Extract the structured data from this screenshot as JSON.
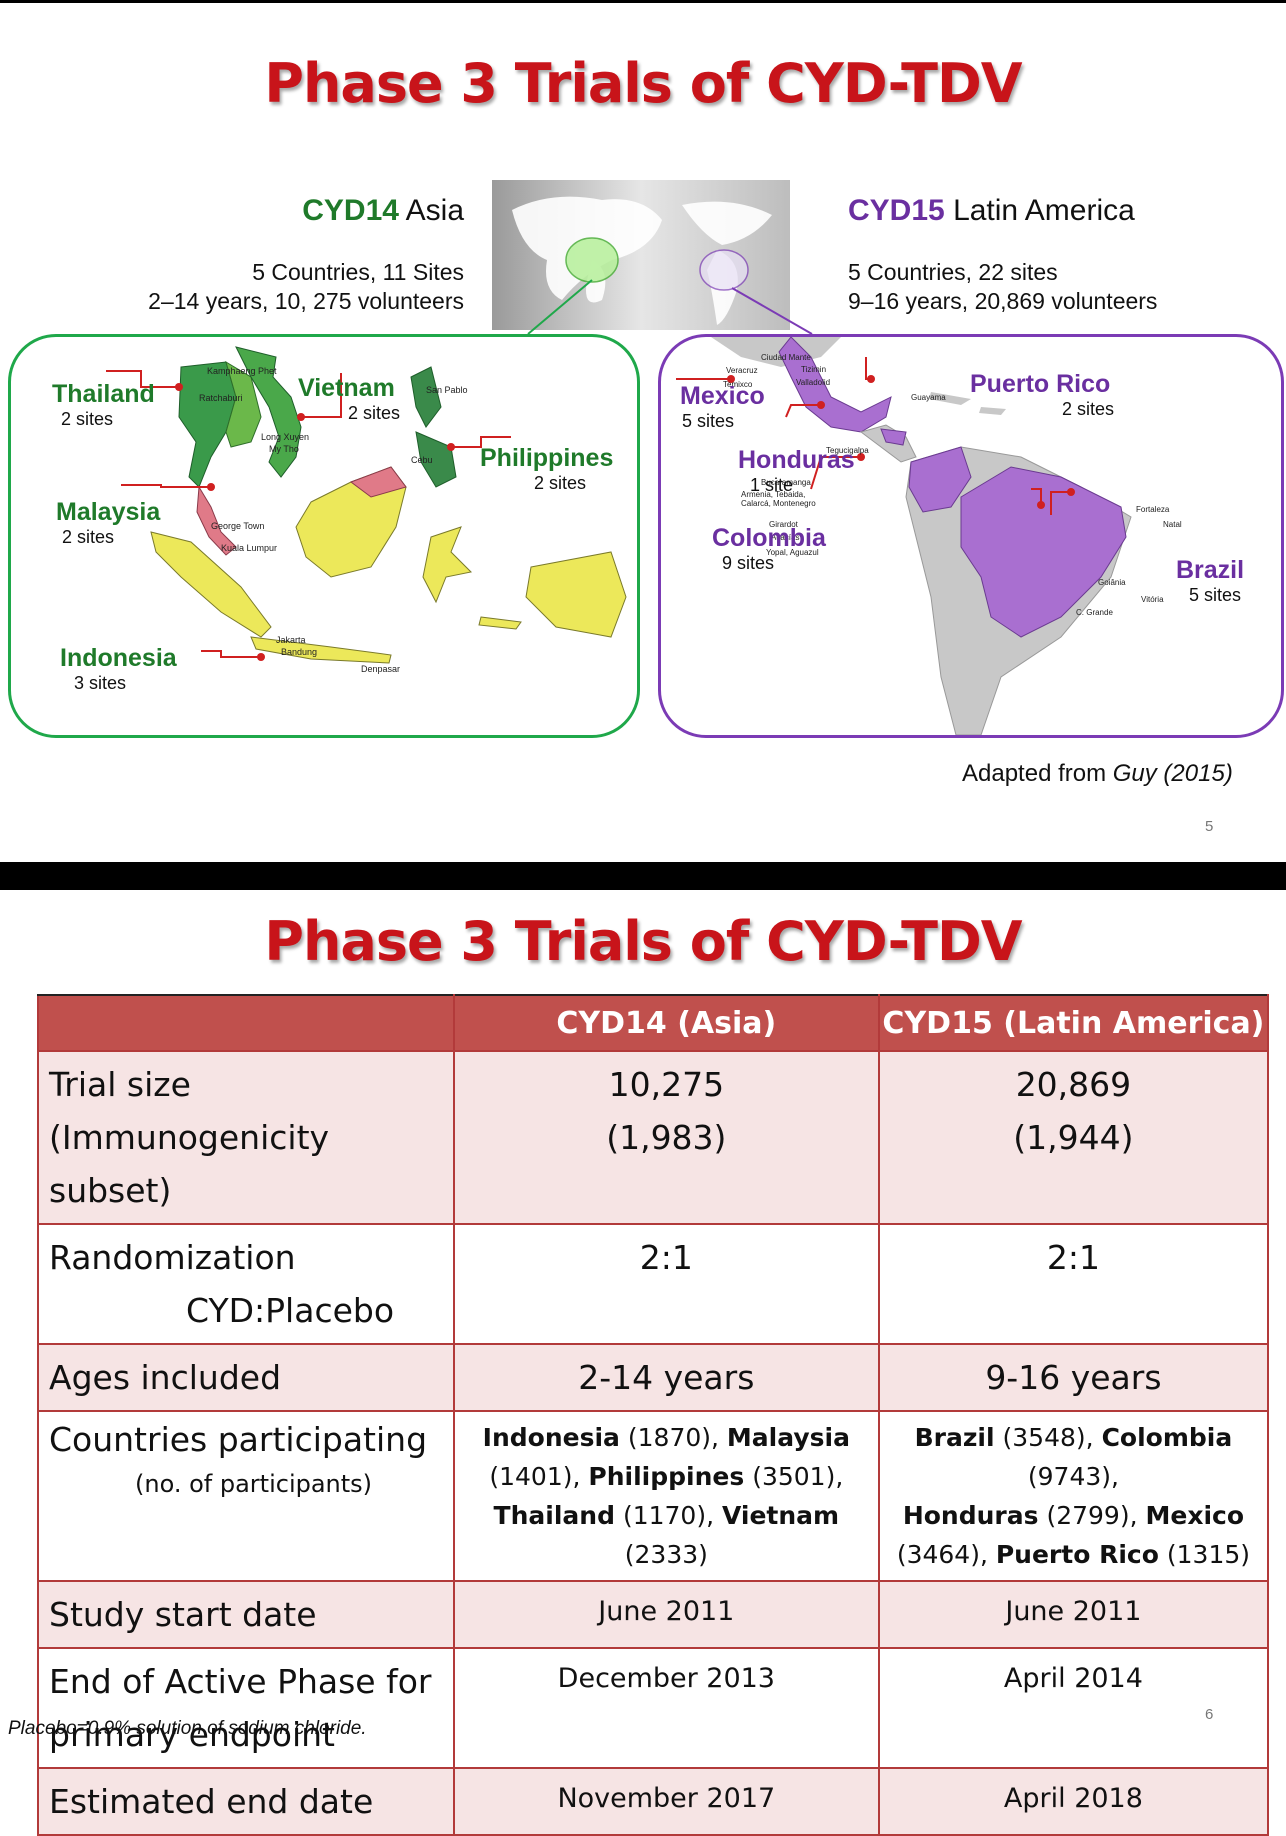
{
  "slide1": {
    "title": "Phase 3 Trials of CYD-TDV",
    "asia": {
      "code": "CYD14",
      "region": "Asia",
      "line1": "5 Countries, 11 Sites",
      "line2": "2–14 years, 10, 275 volunteers",
      "countries": [
        {
          "name": "Thailand",
          "sites": "2 sites"
        },
        {
          "name": "Vietnam",
          "sites": "2 sites"
        },
        {
          "name": "Philippines",
          "sites": "2 sites"
        },
        {
          "name": "Malaysia",
          "sites": "2 sites"
        },
        {
          "name": "Indonesia",
          "sites": "3 sites"
        }
      ],
      "cities": [
        "Kamphaeng Phet",
        "Ratchaburi",
        "Long Xuyen",
        "My Tho",
        "Cebu",
        "San Pablo",
        "George Town",
        "Kuala Lumpur",
        "Jakarta",
        "Bandung",
        "Denpasar"
      ]
    },
    "latam": {
      "code": "CYD15",
      "region": "Latin America",
      "line1": "5 Countries, 22 sites",
      "line2": "9–16 years, 20,869 volunteers",
      "countries": [
        {
          "name": "Mexico",
          "sites": "5 sites"
        },
        {
          "name": "Puerto Rico",
          "sites": "2 sites"
        },
        {
          "name": "Honduras",
          "sites": "1 site"
        },
        {
          "name": "Colombia",
          "sites": "9 sites"
        },
        {
          "name": "Brazil",
          "sites": "5 sites"
        }
      ],
      "cities": [
        "Ciudad Mante",
        "Veracruz",
        "Tizimin",
        "Temixco",
        "Valladolid",
        "Guayama",
        "Tegucigalpa",
        "Bucaramanga",
        "Armenia, Tebaida,",
        "Calarcá, Montenegro",
        "Girardot",
        "Acacías",
        "Yopal, Aguazul",
        "Fortaleza",
        "Natal",
        "Goiânia",
        "Vitória",
        "C. Grande"
      ]
    },
    "adapted_prefix": "Adapted from ",
    "adapted_author": "Guy (2015)",
    "page_number": "5"
  },
  "slide2": {
    "title": "Phase 3 Trials of CYD-TDV",
    "table": {
      "headers": [
        "",
        "CYD14 (Asia)",
        "CYD15 (Latin America)"
      ],
      "trial_size": {
        "label1": "Trial size",
        "label2": "(Immunogenicity subset)",
        "asia1": "10,275",
        "asia2": "(1,983)",
        "latam1": "20,869",
        "latam2": "(1,944)"
      },
      "randomization": {
        "label1": "Randomization",
        "label2": "CYD:Placebo",
        "asia": "2:1",
        "latam": "2:1"
      },
      "ages": {
        "label": "Ages included",
        "asia": "2-14 years",
        "latam": "9-16 years"
      },
      "countries": {
        "label1": "Countries participating",
        "label2": "(no. of participants)",
        "asia": [
          {
            "name": "Indonesia",
            "n": "(1870)"
          },
          {
            "name": "Malaysia",
            "n": "(1401)"
          },
          {
            "name": "Philippines",
            "n": "(3501)"
          },
          {
            "name": "Thailand",
            "n": "(1170)"
          },
          {
            "name": "Vietnam",
            "n": "(2333)"
          }
        ],
        "latam": [
          {
            "name": "Brazil",
            "n": "(3548)"
          },
          {
            "name": "Colombia",
            "n": "(9743)"
          },
          {
            "name": "Honduras",
            "n": "(2799)"
          },
          {
            "name": "Mexico",
            "n": "(3464)"
          },
          {
            "name": "Puerto Rico",
            "n": "(1315)"
          }
        ]
      },
      "start": {
        "label": "Study start date",
        "asia": "June 2011",
        "latam": "June 2011"
      },
      "active_end": {
        "label1": "End of Active Phase for",
        "label2": "primary endpoint",
        "asia": "December 2013",
        "latam": "April  2014"
      },
      "est_end": {
        "label": "Estimated end date",
        "asia": "November 2017",
        "latam": "April 2018"
      }
    },
    "footnote": "Placebo=0.9% solution of sodium chloride.",
    "page_number": "6"
  }
}
